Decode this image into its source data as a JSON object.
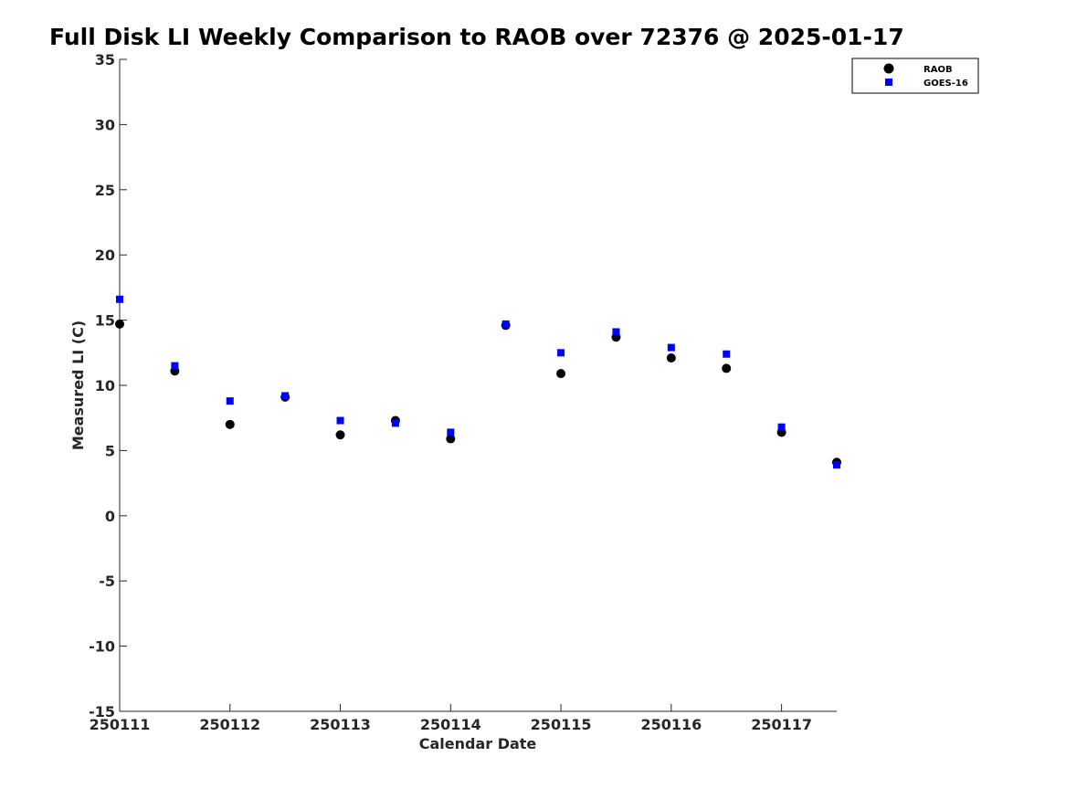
{
  "chart_data": {
    "type": "scatter",
    "title": "Full Disk LI Weekly Comparison to RAOB over 72376 @ 2025-01-17",
    "xlabel": "Calendar Date",
    "ylabel": "Measured LI (C)",
    "x_ticks": [
      "250111",
      "250112",
      "250113",
      "250114",
      "250115",
      "250116",
      "250117"
    ],
    "xlim": [
      "250111 00Z",
      "250117 12Z"
    ],
    "ylim": [
      -15,
      35
    ],
    "y_ticks": [
      -15,
      -10,
      -5,
      0,
      5,
      10,
      15,
      20,
      25,
      30,
      35
    ],
    "grid": false,
    "legend_position": "top-right",
    "x": [
      "250111 00Z",
      "250111 12Z",
      "250112 00Z",
      "250112 12Z",
      "250113 00Z",
      "250113 12Z",
      "250114 00Z",
      "250114 12Z",
      "250115 00Z",
      "250115 12Z",
      "250116 00Z",
      "250116 12Z",
      "250117 00Z",
      "250117 12Z"
    ],
    "series": [
      {
        "name": "RAOB",
        "marker": "circle",
        "color": "#000000",
        "values": [
          14.7,
          11.1,
          7.0,
          9.1,
          6.2,
          7.3,
          5.9,
          14.6,
          10.9,
          13.7,
          12.1,
          11.3,
          6.4,
          4.1
        ]
      },
      {
        "name": "GOES-16",
        "marker": "square",
        "color": "#0000ff",
        "values": [
          16.6,
          11.5,
          8.8,
          9.2,
          7.3,
          7.1,
          6.4,
          14.7,
          12.5,
          14.1,
          12.9,
          12.4,
          6.8,
          3.9
        ]
      }
    ]
  }
}
